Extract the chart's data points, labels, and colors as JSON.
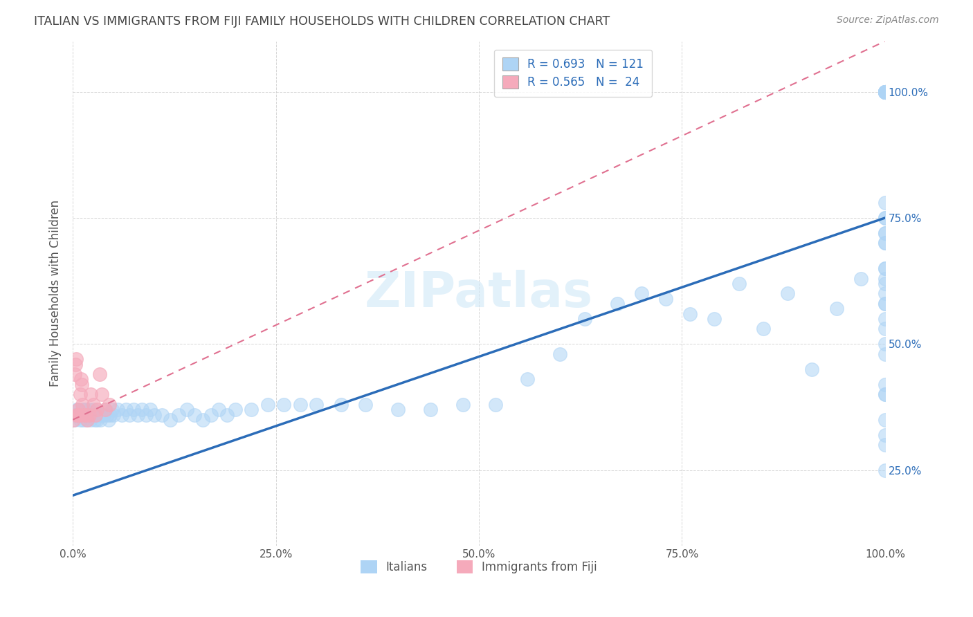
{
  "title": "ITALIAN VS IMMIGRANTS FROM FIJI FAMILY HOUSEHOLDS WITH CHILDREN CORRELATION CHART",
  "source": "Source: ZipAtlas.com",
  "ylabel": "Family Households with Children",
  "x_tick_labels": [
    "0.0%",
    "25.0%",
    "50.0%",
    "75.0%",
    "100.0%"
  ],
  "x_tick_positions": [
    0,
    25,
    50,
    75,
    100
  ],
  "y_right_labels": [
    "25.0%",
    "50.0%",
    "75.0%",
    "100.0%"
  ],
  "y_tick_positions": [
    25,
    50,
    75,
    100
  ],
  "xlim": [
    0,
    100
  ],
  "ylim": [
    10,
    110
  ],
  "blue_color": "#AED4F5",
  "pink_color": "#F5AABB",
  "blue_line_color": "#2B6CB8",
  "pink_line_color": "#E07090",
  "watermark_text": "ZIPatlas",
  "background_color": "#FFFFFF",
  "grid_color": "#CCCCCC",
  "title_color": "#444444",
  "legend1_label": "R = 0.693   N = 121",
  "legend2_label": "R = 0.565   N =  24",
  "bottom_legend1": "Italians",
  "bottom_legend2": "Immigrants from Fiji",
  "blue_trend_x0": 0,
  "blue_trend_y0": 20,
  "blue_trend_x1": 100,
  "blue_trend_y1": 75,
  "pink_trend_x0": 0,
  "pink_trend_y0": 35,
  "pink_trend_x1": 100,
  "pink_trend_y1": 110,
  "blue_scatter_x": [
    0.2,
    0.3,
    0.4,
    0.5,
    0.6,
    0.7,
    0.8,
    0.9,
    1.0,
    1.1,
    1.2,
    1.3,
    1.4,
    1.5,
    1.6,
    1.7,
    1.8,
    1.9,
    2.0,
    2.1,
    2.2,
    2.3,
    2.4,
    2.5,
    2.6,
    2.7,
    2.8,
    2.9,
    3.0,
    3.2,
    3.4,
    3.6,
    3.8,
    4.0,
    4.2,
    4.4,
    4.6,
    4.8,
    5.0,
    5.5,
    6.0,
    6.5,
    7.0,
    7.5,
    8.0,
    8.5,
    9.0,
    9.5,
    10.0,
    11.0,
    12.0,
    13.0,
    14.0,
    15.0,
    16.0,
    17.0,
    18.0,
    19.0,
    20.0,
    22.0,
    24.0,
    26.0,
    28.0,
    30.0,
    33.0,
    36.0,
    40.0,
    44.0,
    48.0,
    52.0,
    56.0,
    60.0,
    63.0,
    67.0,
    70.0,
    73.0,
    76.0,
    79.0,
    82.0,
    85.0,
    88.0,
    91.0,
    94.0,
    97.0,
    100.0,
    100.0,
    100.0,
    100.0,
    100.0,
    100.0,
    100.0,
    100.0,
    100.0,
    100.0,
    100.0,
    100.0,
    100.0,
    100.0,
    100.0,
    100.0,
    100.0,
    100.0,
    100.0,
    100.0,
    100.0,
    100.0,
    100.0,
    100.0,
    100.0,
    100.0,
    100.0,
    100.0,
    100.0,
    100.0,
    100.0,
    100.0,
    100.0,
    100.0,
    100.0,
    100.0,
    100.0
  ],
  "blue_scatter_y": [
    35,
    36,
    36,
    37,
    36,
    37,
    36,
    35,
    36,
    36,
    37,
    35,
    36,
    37,
    36,
    35,
    36,
    36,
    37,
    36,
    35,
    36,
    36,
    37,
    36,
    35,
    36,
    36,
    35,
    36,
    35,
    36,
    36,
    37,
    36,
    35,
    36,
    37,
    36,
    37,
    36,
    37,
    36,
    37,
    36,
    37,
    36,
    37,
    36,
    36,
    35,
    36,
    37,
    36,
    35,
    36,
    37,
    36,
    37,
    37,
    38,
    38,
    38,
    38,
    38,
    38,
    37,
    37,
    38,
    38,
    43,
    48,
    55,
    58,
    60,
    59,
    56,
    55,
    62,
    53,
    60,
    45,
    57,
    63,
    100,
    100,
    100,
    100,
    100,
    100,
    100,
    100,
    100,
    100,
    100,
    100,
    55,
    60,
    65,
    70,
    78,
    75,
    72,
    58,
    62,
    50,
    35,
    30,
    40,
    32,
    25,
    48,
    42,
    53,
    40,
    58,
    63,
    65,
    70,
    72,
    75
  ],
  "pink_scatter_x": [
    0.1,
    0.2,
    0.3,
    0.4,
    0.5,
    0.6,
    0.7,
    0.8,
    0.9,
    1.0,
    1.1,
    1.2,
    1.4,
    1.6,
    1.8,
    2.0,
    2.2,
    2.5,
    2.8,
    3.0,
    3.3,
    3.6,
    4.0,
    4.5
  ],
  "pink_scatter_y": [
    35,
    44,
    46,
    47,
    36,
    36,
    37,
    36,
    40,
    43,
    42,
    38,
    36,
    36,
    35,
    36,
    40,
    38,
    36,
    37,
    44,
    40,
    37,
    38
  ]
}
